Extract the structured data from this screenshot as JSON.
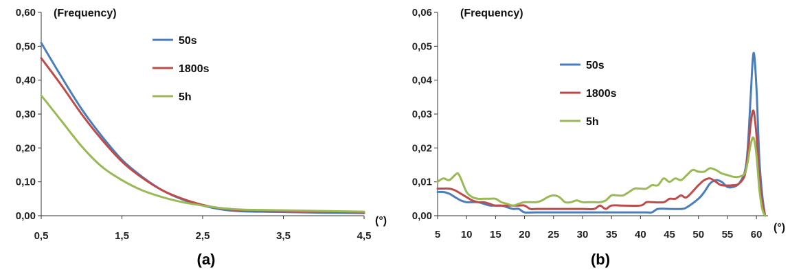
{
  "chart_data": [
    {
      "type": "line",
      "panel_label": "(a)",
      "ylabel": "(Frequency)",
      "xunit": "(°)",
      "xlim": [
        0.5,
        4.5
      ],
      "ylim": [
        0,
        0.6
      ],
      "xticks": [
        "0,5",
        "1,5",
        "2,5",
        "3,5",
        "4,5"
      ],
      "yticks": [
        "0,00",
        "0,10",
        "0,20",
        "0,30",
        "0,40",
        "0,50",
        "0,60"
      ],
      "legend_placement": "top-center",
      "series": [
        {
          "name": "50s",
          "color": "#4a7ebb",
          "x": [
            0.5,
            0.75,
            1.0,
            1.25,
            1.5,
            1.75,
            2.0,
            2.25,
            2.5,
            2.75,
            3.0,
            3.5,
            4.0,
            4.5
          ],
          "y": [
            0.51,
            0.41,
            0.315,
            0.235,
            0.165,
            0.115,
            0.075,
            0.048,
            0.03,
            0.018,
            0.013,
            0.011,
            0.009,
            0.008
          ]
        },
        {
          "name": "1800s",
          "color": "#be4b48",
          "x": [
            0.5,
            0.75,
            1.0,
            1.25,
            1.5,
            1.75,
            2.0,
            2.25,
            2.5,
            2.75,
            3.0,
            3.5,
            4.0,
            4.5
          ],
          "y": [
            0.465,
            0.385,
            0.3,
            0.225,
            0.16,
            0.112,
            0.075,
            0.05,
            0.032,
            0.021,
            0.016,
            0.014,
            0.012,
            0.01
          ]
        },
        {
          "name": "5h",
          "color": "#98b954",
          "x": [
            0.5,
            0.75,
            1.0,
            1.25,
            1.5,
            1.75,
            2.0,
            2.25,
            2.5,
            2.75,
            3.0,
            3.5,
            4.0,
            4.5
          ],
          "y": [
            0.355,
            0.28,
            0.205,
            0.145,
            0.105,
            0.075,
            0.055,
            0.04,
            0.03,
            0.022,
            0.018,
            0.016,
            0.014,
            0.012
          ]
        }
      ]
    },
    {
      "type": "line",
      "panel_label": "(b)",
      "ylabel": "(Frequency)",
      "xunit": "(°)",
      "xlim": [
        5,
        62
      ],
      "ylim": [
        0,
        0.06
      ],
      "xticks": [
        "5",
        "10",
        "15",
        "20",
        "25",
        "30",
        "35",
        "40",
        "45",
        "50",
        "55",
        "60"
      ],
      "yticks": [
        "0,00",
        "0,01",
        "0,02",
        "0,03",
        "0,04",
        "0,05",
        "0,06"
      ],
      "legend_placement": "top-center",
      "series": [
        {
          "name": "50s",
          "color": "#4a7ebb",
          "x": [
            5,
            6,
            7,
            8,
            9,
            10,
            11,
            12,
            13,
            14,
            15,
            16,
            17,
            18,
            19,
            20,
            22,
            25,
            30,
            35,
            40,
            41,
            42,
            43,
            45,
            47,
            48,
            50,
            51,
            52,
            53,
            54,
            55,
            56,
            57,
            58,
            58.5,
            59,
            59.5,
            60,
            60.5,
            61,
            61.5
          ],
          "y": [
            0.007,
            0.007,
            0.0065,
            0.0055,
            0.0045,
            0.004,
            0.004,
            0.004,
            0.0035,
            0.003,
            0.003,
            0.003,
            0.0025,
            0.002,
            0.002,
            0.001,
            0.001,
            0.001,
            0.001,
            0.001,
            0.001,
            0.001,
            0.001,
            0.002,
            0.002,
            0.002,
            0.0025,
            0.005,
            0.007,
            0.0095,
            0.0105,
            0.01,
            0.0085,
            0.0085,
            0.0095,
            0.013,
            0.02,
            0.035,
            0.048,
            0.038,
            0.017,
            0.006,
            0.0
          ]
        },
        {
          "name": "1800s",
          "color": "#be4b48",
          "x": [
            5,
            6,
            7,
            8,
            9,
            10,
            11,
            12,
            13,
            14,
            15,
            17,
            19,
            20,
            21,
            22,
            25,
            30,
            32,
            33,
            34,
            35,
            37,
            40,
            41,
            42,
            44,
            45,
            46,
            47,
            48,
            50,
            51,
            52,
            53,
            54,
            56,
            57,
            58,
            58.5,
            59,
            59.5,
            60,
            60.5,
            61,
            61.5
          ],
          "y": [
            0.008,
            0.008,
            0.008,
            0.0075,
            0.0065,
            0.0055,
            0.0045,
            0.004,
            0.004,
            0.0035,
            0.003,
            0.003,
            0.003,
            0.003,
            0.002,
            0.002,
            0.002,
            0.002,
            0.002,
            0.003,
            0.002,
            0.003,
            0.003,
            0.003,
            0.004,
            0.004,
            0.004,
            0.005,
            0.005,
            0.006,
            0.0055,
            0.009,
            0.0105,
            0.011,
            0.01,
            0.009,
            0.009,
            0.0095,
            0.012,
            0.018,
            0.027,
            0.031,
            0.024,
            0.012,
            0.004,
            0.0
          ]
        },
        {
          "name": "5h",
          "color": "#98b954",
          "x": [
            5,
            6,
            7,
            8,
            8.5,
            9,
            10,
            11,
            12,
            13,
            14,
            15,
            16,
            17,
            18,
            19,
            20,
            22,
            23,
            24,
            25,
            26,
            27,
            28,
            29,
            30,
            31,
            32,
            33,
            34,
            35,
            36,
            37,
            38,
            39,
            40,
            41,
            42,
            43,
            44,
            45,
            46,
            47,
            48,
            49,
            50,
            51,
            52,
            53,
            54,
            55,
            56,
            57,
            58,
            58.5,
            59,
            59.5,
            60,
            60.5,
            61,
            61.5
          ],
          "y": [
            0.01,
            0.011,
            0.0105,
            0.012,
            0.0125,
            0.011,
            0.007,
            0.0055,
            0.005,
            0.005,
            0.005,
            0.005,
            0.004,
            0.0035,
            0.003,
            0.0035,
            0.004,
            0.004,
            0.0045,
            0.0055,
            0.006,
            0.0055,
            0.004,
            0.004,
            0.0045,
            0.004,
            0.004,
            0.004,
            0.004,
            0.0045,
            0.006,
            0.006,
            0.006,
            0.007,
            0.008,
            0.008,
            0.008,
            0.009,
            0.009,
            0.011,
            0.01,
            0.011,
            0.0105,
            0.012,
            0.0135,
            0.013,
            0.013,
            0.014,
            0.0135,
            0.0125,
            0.012,
            0.0115,
            0.0115,
            0.0125,
            0.016,
            0.021,
            0.023,
            0.018,
            0.008,
            0.002,
            0.0
          ]
        }
      ]
    }
  ]
}
